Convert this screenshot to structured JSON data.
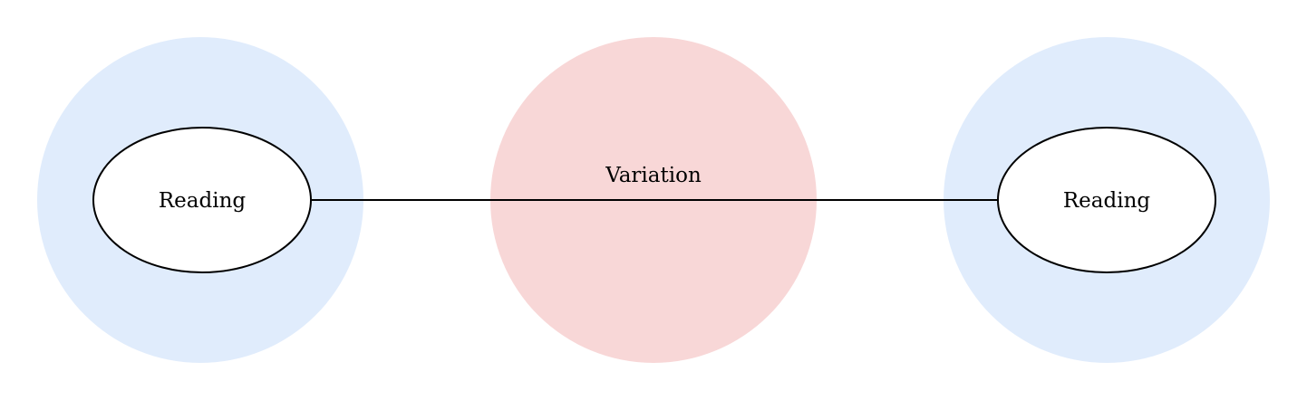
{
  "diagram": {
    "nodes": [
      {
        "id": "left",
        "label": "Reading",
        "halo_color": "#e0ecfc",
        "fill": "#ffffff",
        "stroke": "#000000"
      },
      {
        "id": "center",
        "label": "Variation",
        "halo_color": "#f8d7d7"
      },
      {
        "id": "right",
        "label": "Reading",
        "halo_color": "#e0ecfc",
        "fill": "#ffffff",
        "stroke": "#000000"
      }
    ],
    "edges": [
      {
        "from": "left",
        "to": "right",
        "color": "#000000"
      }
    ]
  }
}
